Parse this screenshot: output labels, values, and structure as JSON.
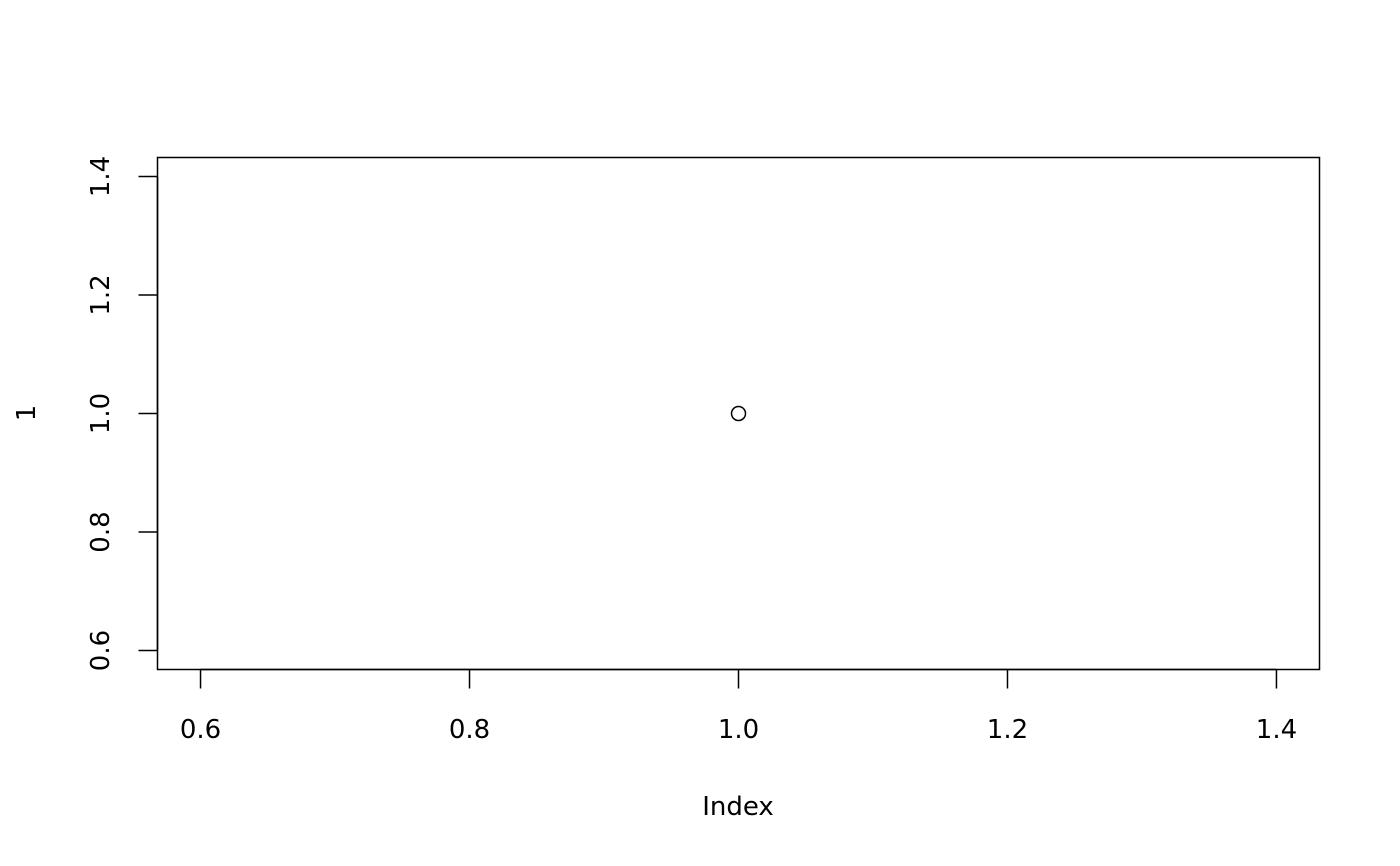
{
  "chart_data": {
    "type": "scatter",
    "title": "",
    "xlabel": "Index",
    "ylabel": "1",
    "x": [
      1
    ],
    "y": [
      1
    ],
    "xlim": [
      0.6,
      1.4
    ],
    "ylim": [
      0.6,
      1.4
    ],
    "xticks": [
      "0.6",
      "0.8",
      "1.0",
      "1.2",
      "1.4"
    ],
    "yticks": [
      "0.6",
      "0.8",
      "1.0",
      "1.2",
      "1.4"
    ],
    "grid": false,
    "marker": "open-circle",
    "colors": {
      "marker": "#000000",
      "axis": "#000000",
      "background": "#ffffff"
    }
  }
}
